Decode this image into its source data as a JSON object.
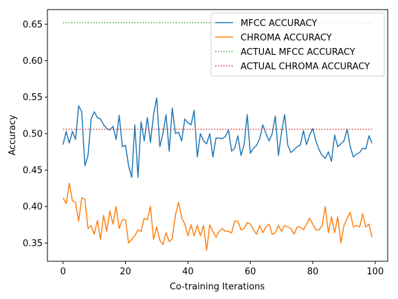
{
  "chart_data": {
    "type": "line",
    "xlabel": "Co-training Iterations",
    "ylabel": "Accuracy",
    "xlim": [
      -5,
      104
    ],
    "ylim": [
      0.325,
      0.67
    ],
    "xticks": [
      0,
      20,
      40,
      60,
      80,
      100
    ],
    "yticks": [
      0.35,
      0.4,
      0.45,
      0.5,
      0.55,
      0.6,
      0.65
    ],
    "xtick_labels": [
      "0",
      "20",
      "40",
      "60",
      "80",
      "100"
    ],
    "ytick_labels": [
      "0.35",
      "0.40",
      "0.45",
      "0.50",
      "0.55",
      "0.60",
      "0.65"
    ],
    "grid": false,
    "legend_position": "top-right",
    "series": [
      {
        "name": "MFCC ACCURACY",
        "color": "#1f77b4",
        "style": "solid",
        "x_start": 0,
        "x_step": 1,
        "values": [
          0.485,
          0.503,
          0.487,
          0.503,
          0.492,
          0.538,
          0.53,
          0.456,
          0.47,
          0.52,
          0.53,
          0.522,
          0.52,
          0.512,
          0.507,
          0.505,
          0.51,
          0.492,
          0.525,
          0.482,
          0.484,
          0.456,
          0.44,
          0.512,
          0.44,
          0.516,
          0.49,
          0.522,
          0.488,
          0.526,
          0.549,
          0.482,
          0.5,
          0.526,
          0.476,
          0.535,
          0.5,
          0.502,
          0.49,
          0.52,
          0.515,
          0.512,
          0.532,
          0.468,
          0.5,
          0.49,
          0.486,
          0.5,
          0.468,
          0.494,
          0.494,
          0.493,
          0.496,
          0.505,
          0.476,
          0.48,
          0.497,
          0.47,
          0.485,
          0.526,
          0.473,
          0.48,
          0.484,
          0.493,
          0.512,
          0.5,
          0.49,
          0.5,
          0.524,
          0.47,
          0.502,
          0.526,
          0.484,
          0.474,
          0.478,
          0.482,
          0.484,
          0.504,
          0.485,
          0.498,
          0.507,
          0.49,
          0.478,
          0.47,
          0.466,
          0.475,
          0.462,
          0.498,
          0.482,
          0.486,
          0.49,
          0.506,
          0.482,
          0.468,
          0.472,
          0.474,
          0.48,
          0.479,
          0.497,
          0.487
        ]
      },
      {
        "name": "CHROMA ACCURACY",
        "color": "#ff7f0e",
        "style": "solid",
        "x_start": 0,
        "x_step": 1,
        "values": [
          0.412,
          0.404,
          0.432,
          0.408,
          0.406,
          0.38,
          0.412,
          0.41,
          0.37,
          0.374,
          0.362,
          0.381,
          0.355,
          0.388,
          0.366,
          0.394,
          0.376,
          0.4,
          0.37,
          0.382,
          0.382,
          0.35,
          0.355,
          0.36,
          0.368,
          0.366,
          0.384,
          0.382,
          0.4,
          0.355,
          0.372,
          0.354,
          0.348,
          0.364,
          0.352,
          0.356,
          0.388,
          0.406,
          0.385,
          0.376,
          0.36,
          0.375,
          0.36,
          0.374,
          0.36,
          0.374,
          0.34,
          0.375,
          0.366,
          0.358,
          0.366,
          0.37,
          0.366,
          0.366,
          0.364,
          0.38,
          0.38,
          0.368,
          0.37,
          0.378,
          0.376,
          0.368,
          0.362,
          0.374,
          0.364,
          0.372,
          0.376,
          0.362,
          0.364,
          0.374,
          0.366,
          0.374,
          0.372,
          0.37,
          0.362,
          0.372,
          0.372,
          0.368,
          0.376,
          0.384,
          0.376,
          0.368,
          0.368,
          0.374,
          0.4,
          0.364,
          0.386,
          0.364,
          0.386,
          0.35,
          0.374,
          0.384,
          0.392,
          0.372,
          0.374,
          0.372,
          0.39,
          0.372,
          0.376,
          0.358
        ]
      },
      {
        "name": "ACTUAL MFCC ACCURACY",
        "color": "#2ca02c",
        "style": "dotted",
        "x": [
          0,
          99
        ],
        "values": [
          0.652,
          0.652
        ]
      },
      {
        "name": "ACTUAL CHROMA ACCURACY",
        "color": "#d62728",
        "style": "dotted",
        "x": [
          0,
          99
        ],
        "values": [
          0.506,
          0.506
        ]
      }
    ]
  }
}
